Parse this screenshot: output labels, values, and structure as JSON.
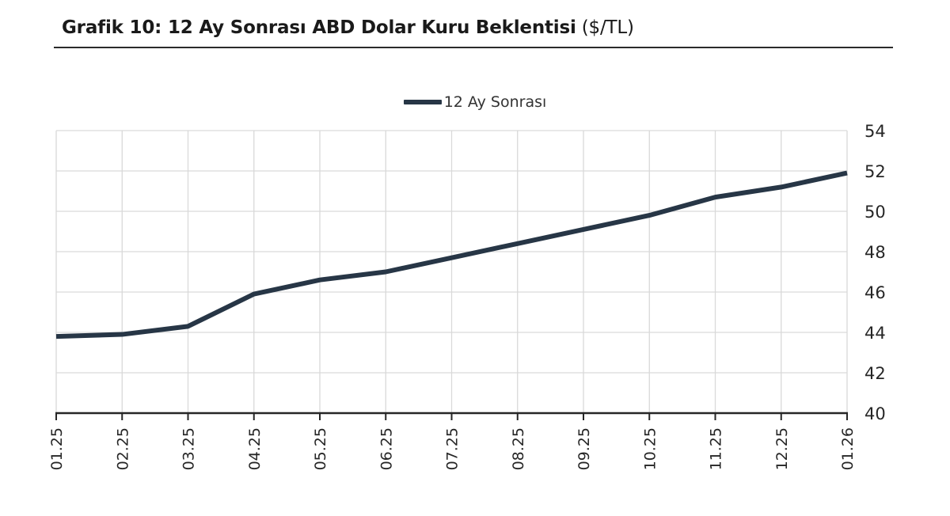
{
  "page": {
    "title_main": "Grafik 10: 12 Ay Sonrası ABD Dolar Kuru Beklentisi",
    "title_suffix": " ($/TL)"
  },
  "chart_data": {
    "type": "line",
    "title": "Grafik 10: 12 Ay Sonrası ABD Dolar Kuru Beklentisi ($/TL)",
    "legend_position": "top-center",
    "x": [
      "01.25",
      "02.25",
      "03.25",
      "04.25",
      "05.25",
      "06.25",
      "07.25",
      "08.25",
      "09.25",
      "10.25",
      "11.25",
      "12.25",
      "01.26"
    ],
    "series": [
      {
        "name": "12 Ay Sonrası",
        "values": [
          43.8,
          43.9,
          44.3,
          45.9,
          46.6,
          47.0,
          47.7,
          48.4,
          49.1,
          49.8,
          50.7,
          51.2,
          51.9
        ]
      }
    ],
    "xlabel": "",
    "ylabel": "",
    "ylim": [
      40,
      54
    ],
    "yticks": [
      40,
      42,
      44,
      46,
      48,
      50,
      52,
      54
    ],
    "grid": true,
    "colors": {
      "line": "#273646",
      "grid": "#d9d9d9",
      "axis": "#262626",
      "tick_text": "#262626",
      "title_text": "#1a1a1a",
      "rule": "#2b2b2b"
    }
  }
}
